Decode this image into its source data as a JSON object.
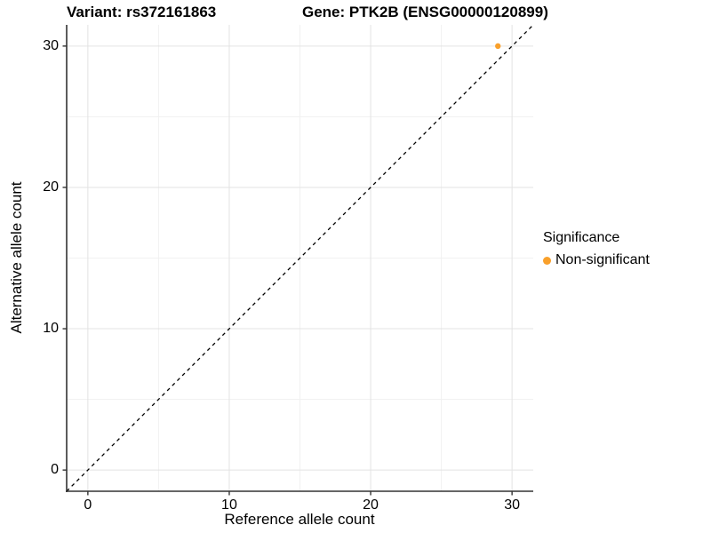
{
  "chart_data": {
    "type": "scatter",
    "title_variant": "Variant: rs372161863",
    "title_gene": "Gene: PTK2B (ENSG00000120899)",
    "xlabel": "Reference allele count",
    "ylabel": "Alternative allele count",
    "x_ticks": [
      0,
      10,
      20,
      30
    ],
    "y_ticks": [
      0,
      10,
      20,
      30
    ],
    "x_minor_ticks": [
      5,
      15,
      25
    ],
    "y_minor_ticks": [
      5,
      15,
      25
    ],
    "xlim": [
      -1.5,
      31.5
    ],
    "ylim": [
      -1.5,
      31.5
    ],
    "grid": true,
    "reference_line": {
      "type": "identity",
      "style": "dashed",
      "color": "#000000"
    },
    "series": [
      {
        "name": "Non-significant",
        "color": "#F9A02B",
        "points": [
          {
            "x": 29,
            "y": 30
          }
        ]
      }
    ],
    "legend": {
      "title": "Significance",
      "position": "right",
      "items": [
        {
          "label": "Non-significant",
          "color": "#F9A02B"
        }
      ]
    },
    "colors": {
      "grid_major": "#E3E3E3",
      "grid_minor": "#F1F1F1",
      "axis_line": "#333333",
      "tick_mark": "#333333",
      "background": "#FFFFFF"
    }
  }
}
